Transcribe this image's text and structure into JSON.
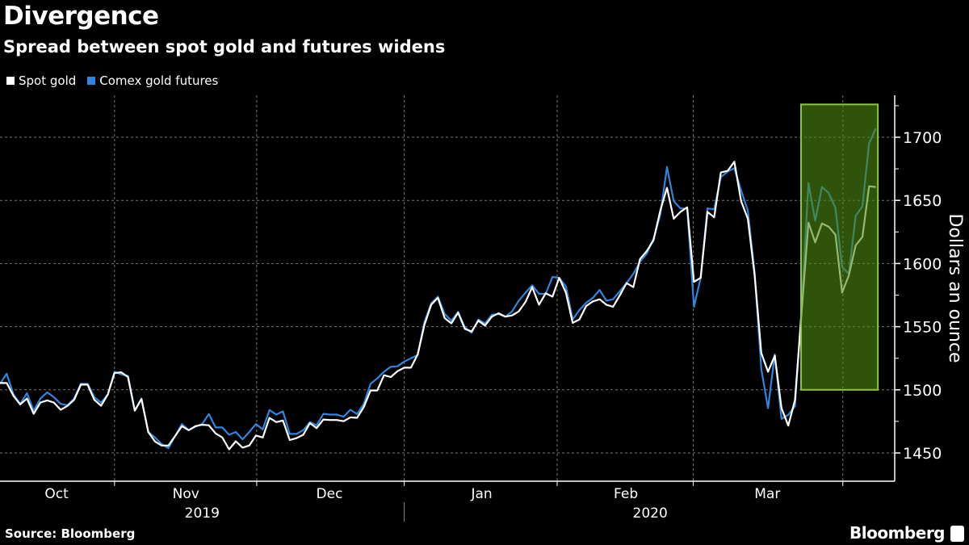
{
  "header": {
    "title": "Divergence",
    "subtitle": "Spread between spot gold and futures widens"
  },
  "footer": {
    "source": "Source: Bloomberg",
    "brand": "Bloomberg"
  },
  "chart_data": {
    "type": "line",
    "title": "Divergence",
    "subtitle": "Spread between spot gold and futures widens",
    "xlabel": "",
    "ylabel": "Dollars an ounce",
    "ylim": [
      1425,
      1735
    ],
    "xlim": [
      0,
      132.8
    ],
    "y_ticks": [
      1450,
      1500,
      1550,
      1600,
      1650,
      1700
    ],
    "x_month_ticks": [
      17.0,
      38.1,
      60.0,
      82.7,
      102.9,
      125.1
    ],
    "x_month_labels": [
      {
        "label": "Oct",
        "at": 8.4
      },
      {
        "label": "Nov",
        "at": 27.6
      },
      {
        "label": "Dec",
        "at": 48.9
      },
      {
        "label": "Jan",
        "at": 71.5
      },
      {
        "label": "Feb",
        "at": 92.9
      },
      {
        "label": "Mar",
        "at": 113.9
      }
    ],
    "x_year_labels": [
      {
        "label": "2019",
        "at": 30
      },
      {
        "label": "2020",
        "at": 96.5
      }
    ],
    "year_separator": 60.0,
    "grid": true,
    "legend_position": "top-left",
    "x_unit": "trading day index (Oct 2019 - Mar 2020)",
    "highlight": {
      "x": [
        118.9,
        130.3
      ],
      "y": [
        1500,
        1726
      ],
      "fill": "#4f8a10",
      "stroke": "#8cc63f"
    },
    "series": [
      {
        "name": "Spot gold",
        "color": "#ffffff",
        "values": [
          1505.4,
          1505.4,
          1495.2,
          1488.4,
          1493.1,
          1481.0,
          1489.9,
          1491.6,
          1489.9,
          1484.2,
          1487.2,
          1492.1,
          1504.1,
          1504.1,
          1492.1,
          1487.4,
          1496.3,
          1513.3,
          1513.9,
          1510.1,
          1483.5,
          1492.7,
          1466.6,
          1459.1,
          1455.9,
          1455.9,
          1463.4,
          1471.2,
          1468.0,
          1471.2,
          1472.3,
          1471.9,
          1465.5,
          1462.3,
          1452.9,
          1459.3,
          1454.2,
          1455.9,
          1463.8,
          1462.3,
          1477.8,
          1474.4,
          1475.7,
          1460.2,
          1461.7,
          1464.4,
          1473.6,
          1469.7,
          1476.5,
          1476.1,
          1476.1,
          1475.1,
          1478.2,
          1477.8,
          1486.3,
          1499.5,
          1499.5,
          1511.6,
          1510.1,
          1514.8,
          1517.5,
          1517.5,
          1528.1,
          1551.5,
          1567.4,
          1572.8,
          1556.8,
          1552.6,
          1561.1,
          1548.3,
          1546.2,
          1554.7,
          1550.9,
          1557.9,
          1560.6,
          1557.9,
          1558.9,
          1562.1,
          1569.6,
          1581.3,
          1567.4,
          1576.4,
          1573.8,
          1588.7,
          1577.0,
          1553.0,
          1555.7,
          1566.4,
          1570.0,
          1571.7,
          1567.4,
          1565.7,
          1574.9,
          1584.5,
          1581.3,
          1603.6,
          1610.0,
          1618.5,
          1641.9,
          1660.0,
          1635.5,
          1640.9,
          1644.5,
          1585.5,
          1588.7,
          1640.9,
          1636.6,
          1672.1,
          1673.4,
          1680.6,
          1649.4,
          1635.5,
          1590.9,
          1529.1,
          1514.3,
          1527.0,
          1485.5,
          1471.7,
          1491.9,
          1563.1,
          1632.4,
          1616.8,
          1631.8,
          1629.2,
          1622.8,
          1577.0,
          1590.8,
          1614.3,
          1621.1,
          1661.2,
          1660.6
        ]
      },
      {
        "name": "Comex gold futures",
        "color": "#2f86dd",
        "values": [
          1504.8,
          1512.8,
          1496.3,
          1488.9,
          1497.3,
          1483.5,
          1493.1,
          1498.0,
          1494.2,
          1488.9,
          1487.8,
          1493.1,
          1504.8,
          1504.8,
          1494.2,
          1489.9,
          1496.3,
          1514.3,
          1512.2,
          1511.1,
          1483.5,
          1493.1,
          1466.6,
          1462.3,
          1457.0,
          1453.8,
          1463.4,
          1472.9,
          1468.0,
          1470.8,
          1472.9,
          1480.8,
          1470.2,
          1470.2,
          1464.4,
          1466.6,
          1460.8,
          1466.6,
          1472.9,
          1468.7,
          1484.0,
          1480.4,
          1482.9,
          1465.1,
          1465.1,
          1468.0,
          1474.4,
          1471.9,
          1481.0,
          1480.4,
          1480.4,
          1478.7,
          1484.2,
          1480.8,
          1488.9,
          1504.8,
          1509.0,
          1514.3,
          1518.2,
          1518.6,
          1522.4,
          1525.0,
          1527.5,
          1553.6,
          1568.5,
          1573.8,
          1560.0,
          1554.7,
          1561.7,
          1549.4,
          1545.1,
          1555.7,
          1552.6,
          1559.4,
          1560.0,
          1557.9,
          1562.1,
          1570.6,
          1577.0,
          1582.8,
          1576.0,
          1576.0,
          1589.4,
          1588.7,
          1581.9,
          1555.7,
          1563.2,
          1568.9,
          1572.8,
          1579.1,
          1570.6,
          1571.7,
          1578.1,
          1584.5,
          1591.9,
          1601.5,
          1607.9,
          1619.6,
          1638.7,
          1676.4,
          1649.4,
          1643.6,
          1643.6,
          1565.7,
          1588.7,
          1643.6,
          1643.0,
          1668.5,
          1672.8,
          1675.5,
          1657.9,
          1641.9,
          1593.0,
          1516.4,
          1485.5,
          1528.1,
          1477.0,
          1480.2,
          1487.0,
          1567.4,
          1663.8,
          1633.9,
          1660.6,
          1655.9,
          1644.1,
          1597.2,
          1591.9,
          1637.7,
          1645.2,
          1695.3,
          1707.0
        ]
      }
    ]
  }
}
